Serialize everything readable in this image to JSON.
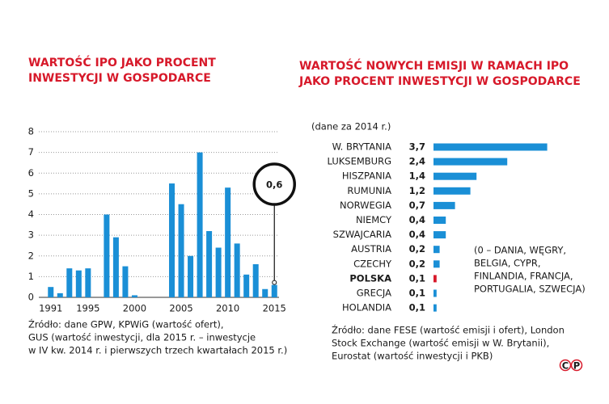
{
  "chart_data": [
    {
      "type": "bar",
      "title": [
        "WARTOŚĆ IPO JAKO PROCENT",
        "INWESTYCJI W GOSPODARCE"
      ],
      "x": [
        1991,
        1992,
        1993,
        1994,
        1995,
        1996,
        1997,
        1998,
        1999,
        2000,
        2001,
        2002,
        2003,
        2004,
        2005,
        2006,
        2007,
        2008,
        2009,
        2010,
        2011,
        2012,
        2013,
        2014,
        2015
      ],
      "values": [
        0.5,
        0.2,
        1.4,
        1.3,
        1.4,
        0,
        4.0,
        2.9,
        1.5,
        0.1,
        0,
        0,
        0,
        5.5,
        4.5,
        2.0,
        7.0,
        3.2,
        2.4,
        5.3,
        2.6,
        1.1,
        1.6,
        0.4,
        0.6
      ],
      "color": "#1a8fd6",
      "xlim": [
        1990.5,
        2015.5
      ],
      "xticks": [
        1991,
        1995,
        2000,
        2005,
        2010,
        2015
      ],
      "ylim": [
        0,
        8
      ],
      "yticks": [
        0,
        1,
        2,
        3,
        4,
        5,
        6,
        7,
        8
      ],
      "grid": true,
      "annotation": "0,6",
      "source": [
        "Źródło: dane GPW, KPWiG (wartość ofert),",
        "GUS (wartość inwestycji, dla 2015 r. – inwestycje",
        "w IV kw. 2014 r. i pierwszych trzech kwartałach 2015 r.)"
      ]
    },
    {
      "type": "hbar",
      "title": [
        "WARTOŚĆ NOWYCH EMISJI W RAMACH IPO",
        "JAKO PROCENT INWESTYCJI W GOSPODARCE"
      ],
      "subtitle": "(dane za 2014 r.)",
      "categories": [
        "W. BRYTANIA",
        "LUKSEMBURG",
        "HISZPANIA",
        "RUMUNIA",
        "NORWEGIA",
        "NIEMCY",
        "SZWAJCARIA",
        "AUSTRIA",
        "CZECHY",
        "POLSKA",
        "GRECJA",
        "HOLANDIA"
      ],
      "values": [
        3.7,
        2.4,
        1.4,
        1.2,
        0.7,
        0.4,
        0.4,
        0.2,
        0.2,
        0.1,
        0.1,
        0.1
      ],
      "value_labels": [
        "3,7",
        "2,4",
        "1,4",
        "1,2",
        "0,7",
        "0,4",
        "0,4",
        "0,2",
        "0,2",
        "0,1",
        "0,1",
        "0,1"
      ],
      "color": "#1a8fd6",
      "colors": [
        "#1a8fd6",
        "#1a8fd6",
        "#1a8fd6",
        "#1a8fd6",
        "#1a8fd6",
        "#1a8fd6",
        "#1a8fd6",
        "#1a8fd6",
        "#1a8fd6",
        "#d7192a",
        "#1a8fd6",
        "#1a8fd6"
      ],
      "xlim": [
        0,
        4
      ],
      "note": [
        "(0 – DANIA, WĘGRY,",
        "BELGIA, CYPR,",
        "FINLANDIA, FRANCJA,",
        "PORTUGALIA, SZWECJA)"
      ],
      "source": [
        "Źródło: dane FESE (wartość emisji i ofert), London",
        "Stock Exchange (wartość emisji w W. Brytanii),",
        "Eurostat (wartość inwestycji i PKB)"
      ],
      "logo": [
        "C",
        "P"
      ]
    }
  ]
}
